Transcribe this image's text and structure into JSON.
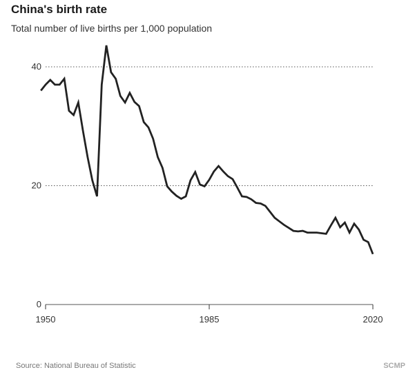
{
  "header": {
    "title": "China's birth rate",
    "subtitle": "Total number of live births per 1,000 population"
  },
  "footer": {
    "source": "Source: National Bureau of Statistic",
    "brand": "SCMP"
  },
  "colors": {
    "line": "#222222",
    "grid": "#555555",
    "axis": "#333333"
  },
  "chart_data": {
    "type": "line",
    "title": "China's birth rate",
    "subtitle": "Total number of live births per 1,000 population",
    "xlabel": "",
    "ylabel": "",
    "xlim": [
      1950,
      2020
    ],
    "ylim": [
      0,
      43
    ],
    "x_ticks": [
      1950,
      1985,
      2020
    ],
    "y_ticks": [
      0,
      20,
      40
    ],
    "grid": "horizontal dotted",
    "legend": "none",
    "x": [
      1949,
      1950,
      1951,
      1952,
      1953,
      1954,
      1955,
      1956,
      1957,
      1958,
      1959,
      1960,
      1961,
      1962,
      1963,
      1964,
      1965,
      1966,
      1967,
      1968,
      1969,
      1970,
      1971,
      1972,
      1973,
      1974,
      1975,
      1976,
      1977,
      1978,
      1979,
      1980,
      1981,
      1982,
      1983,
      1984,
      1985,
      1986,
      1987,
      1988,
      1989,
      1990,
      1991,
      1992,
      1993,
      1994,
      1995,
      1996,
      1997,
      1998,
      1999,
      2000,
      2001,
      2002,
      2003,
      2004,
      2005,
      2006,
      2007,
      2008,
      2009,
      2010,
      2011,
      2012,
      2013,
      2014,
      2015,
      2016,
      2017,
      2018,
      2019,
      2020
    ],
    "series": [
      {
        "values": [
          36.0,
          37.0,
          37.8,
          37.0,
          37.0,
          38.0,
          32.6,
          31.9,
          34.0,
          29.2,
          24.8,
          20.9,
          18.2,
          37.0,
          43.6,
          39.1,
          38.0,
          35.1,
          34.0,
          35.6,
          34.1,
          33.4,
          30.7,
          29.8,
          27.9,
          24.8,
          23.0,
          19.9,
          19.0,
          18.3,
          17.8,
          18.2,
          20.9,
          22.3,
          20.2,
          19.9,
          21.0,
          22.4,
          23.3,
          22.4,
          21.6,
          21.1,
          19.7,
          18.2,
          18.1,
          17.7,
          17.1,
          17.0,
          16.6,
          15.6,
          14.6,
          14.0,
          13.4,
          12.9,
          12.4,
          12.3,
          12.4,
          12.1,
          12.1,
          12.1,
          12.0,
          11.9,
          13.3,
          14.6,
          13.0,
          13.8,
          12.1,
          13.6,
          12.6,
          10.9,
          10.5,
          8.5
        ]
      }
    ]
  }
}
